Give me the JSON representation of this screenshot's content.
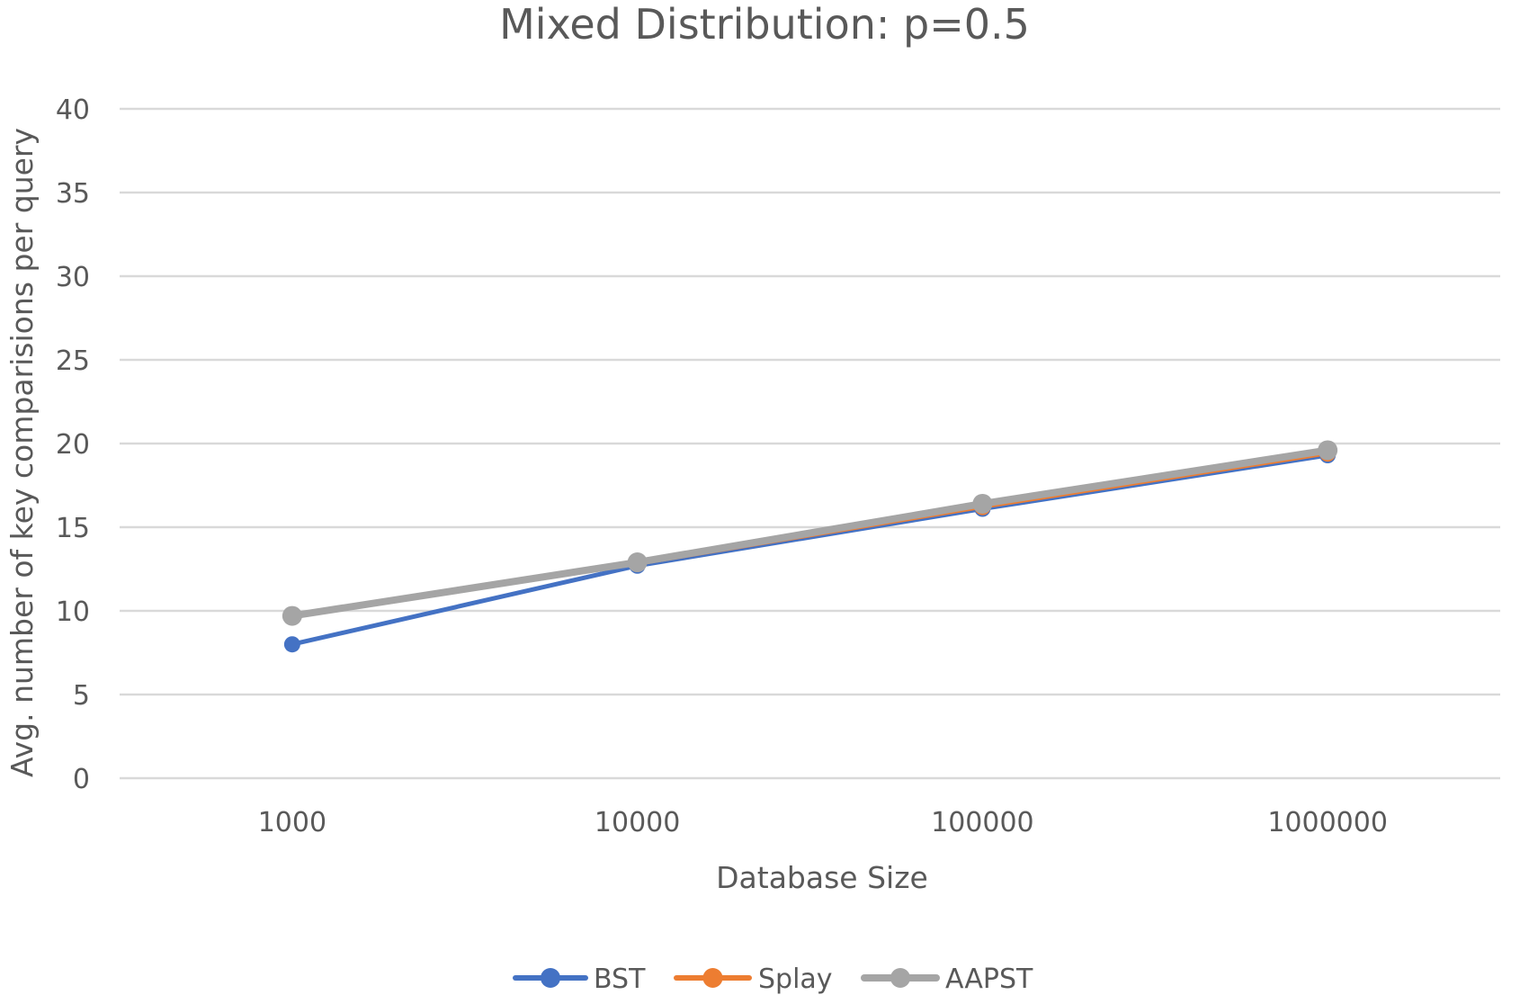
{
  "chart_data": {
    "type": "line",
    "title": "Mixed Distribution: p=0.5",
    "xlabel": "Database Size",
    "ylabel": "Avg. number of key comparisions per query",
    "categories": [
      "1000",
      "10000",
      "100000",
      "1000000"
    ],
    "ylim": [
      0,
      40
    ],
    "yticks": [
      "0",
      "5",
      "10",
      "15",
      "20",
      "25",
      "30",
      "35",
      "40"
    ],
    "grid": true,
    "legend": "bottom",
    "series": [
      {
        "name": "BST",
        "color": "#4472c4",
        "values": [
          8.0,
          12.7,
          16.1,
          19.3
        ]
      },
      {
        "name": "Splay",
        "color": "#ed7d31",
        "values": [
          9.7,
          12.8,
          16.2,
          19.4
        ]
      },
      {
        "name": "AAPST",
        "color": "#a5a5a5",
        "values": [
          9.7,
          12.9,
          16.4,
          19.6
        ]
      }
    ]
  }
}
